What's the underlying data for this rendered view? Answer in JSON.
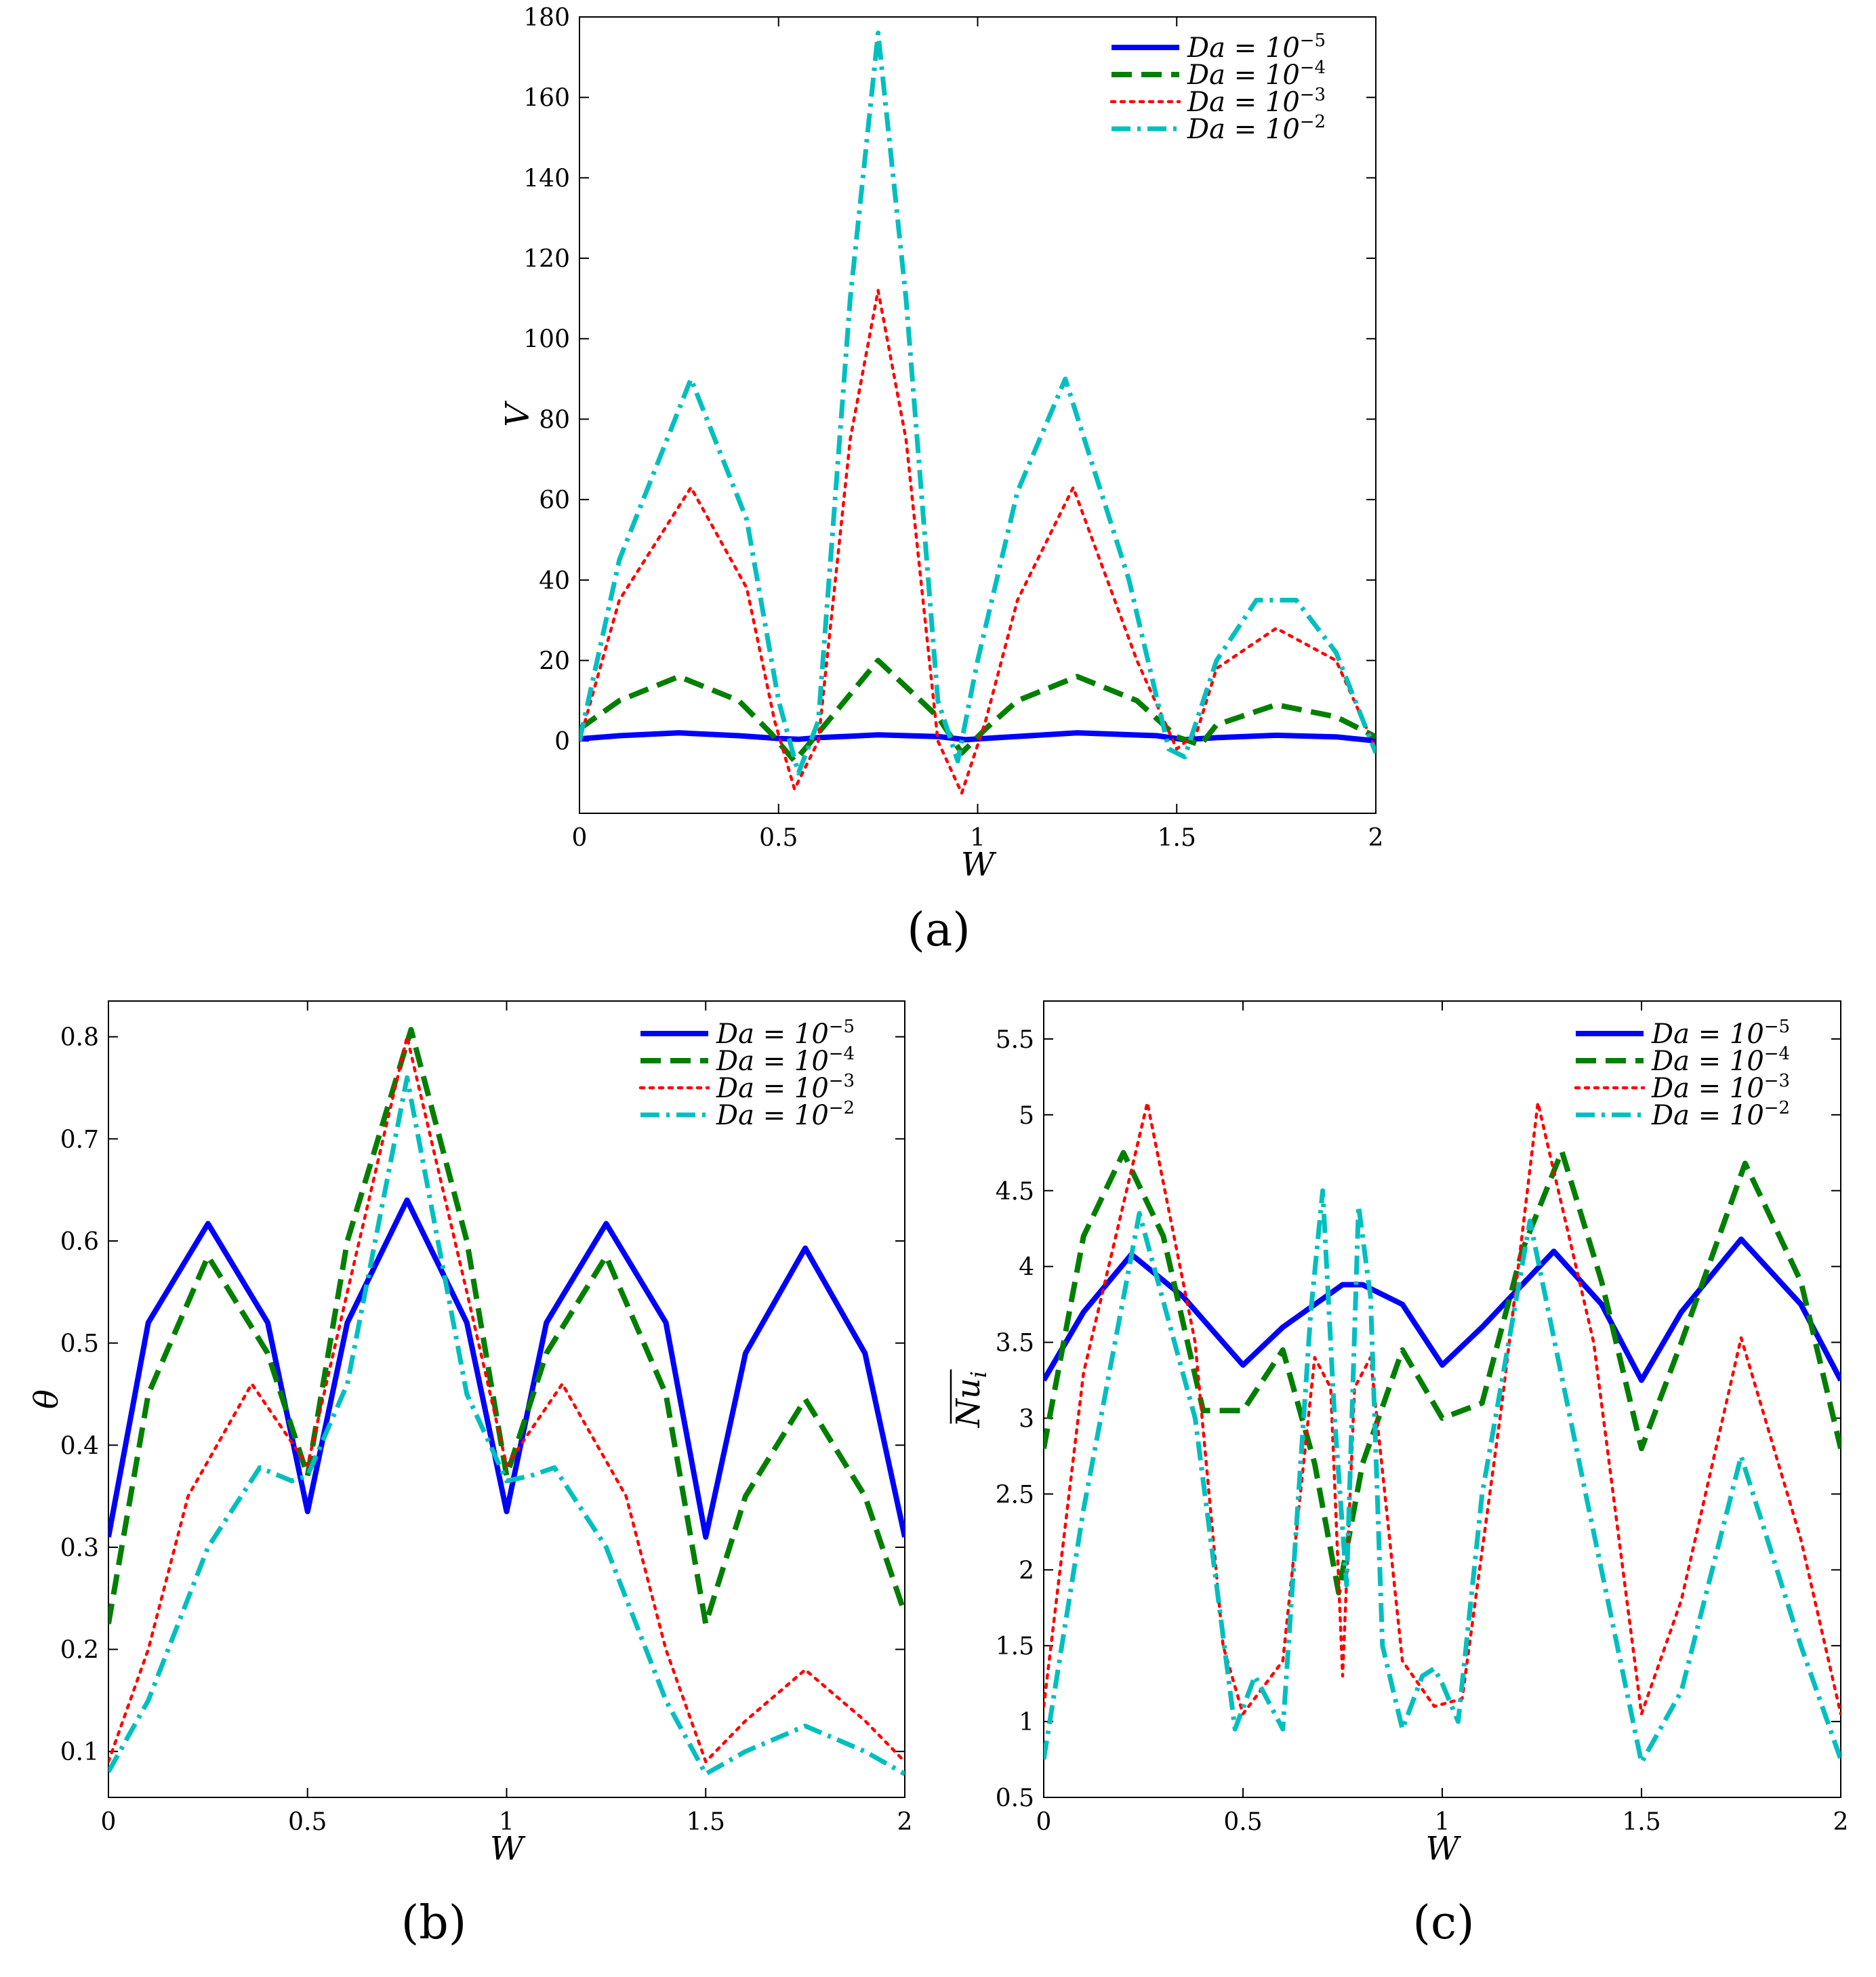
{
  "colors": {
    "Da1e-5": "#0000ff",
    "Da1e-4": "#007f00",
    "Da1e-3": "#ff0000",
    "Da1e-2": "#00bfbf"
  },
  "chart_data": [
    {
      "id": "a",
      "type": "line",
      "caption": "(a)",
      "xlabel": "W",
      "ylabel": "V",
      "xlim": [
        0,
        2
      ],
      "ylim": [
        -18,
        180
      ],
      "xticks": [
        0,
        0.5,
        1,
        1.5,
        2
      ],
      "xtick_labels": [
        "0",
        "0.5",
        "1",
        "1.5",
        "2"
      ],
      "yticks": [
        0,
        20,
        40,
        60,
        80,
        100,
        120,
        140,
        160,
        180
      ],
      "ytick_labels": [
        "0",
        "20",
        "40",
        "60",
        "80",
        "100",
        "120",
        "140",
        "160",
        "180"
      ],
      "legend_position": "top-right",
      "series": [
        {
          "name": "Da = 10^-5",
          "legend_base": "Da = 10",
          "legend_exp": "−5",
          "style": "solid",
          "color_key": "Da1e-5",
          "x": [
            0,
            0.1,
            0.25,
            0.4,
            0.5,
            0.55,
            0.6,
            0.75,
            0.9,
            0.97,
            1.05,
            1.25,
            1.45,
            1.52,
            1.6,
            1.75,
            1.9,
            2
          ],
          "y": [
            0.5,
            1.3,
            2,
            1.3,
            0.6,
            0.4,
            0.8,
            1.5,
            1.1,
            0.3,
            0.8,
            2,
            1.3,
            0.3,
            0.8,
            1.4,
            1,
            0
          ]
        },
        {
          "name": "Da = 10^-4",
          "legend_base": "Da = 10",
          "legend_exp": "−4",
          "style": "dashed",
          "color_key": "Da1e-4",
          "x": [
            0,
            0.1,
            0.25,
            0.4,
            0.48,
            0.54,
            0.6,
            0.75,
            0.9,
            0.96,
            1.02,
            1.1,
            1.25,
            1.4,
            1.5,
            1.56,
            1.6,
            1.75,
            1.9,
            2
          ],
          "y": [
            3,
            10,
            16,
            10,
            2,
            -5,
            2,
            20,
            6,
            -3,
            3,
            10,
            16,
            10,
            1,
            -1,
            4,
            9,
            6,
            1
          ]
        },
        {
          "name": "Da = 10^-3",
          "legend_base": "Da = 10",
          "legend_exp": "−3",
          "style": "dotted",
          "color_key": "Da1e-3",
          "x": [
            0,
            0.1,
            0.28,
            0.42,
            0.49,
            0.54,
            0.6,
            0.68,
            0.75,
            0.82,
            0.9,
            0.96,
            1.02,
            1.1,
            1.24,
            1.4,
            1.5,
            1.55,
            1.6,
            1.75,
            1.9,
            2
          ],
          "y": [
            0,
            35,
            63,
            38,
            5,
            -12,
            0,
            75,
            112,
            75,
            0,
            -13,
            5,
            35,
            63,
            20,
            -2,
            2,
            18,
            28,
            20,
            -2
          ]
        },
        {
          "name": "Da = 10^-2",
          "legend_base": "Da = 10",
          "legend_exp": "−2",
          "style": "dashdot",
          "color_key": "Da1e-2",
          "x": [
            0,
            0.1,
            0.28,
            0.42,
            0.5,
            0.55,
            0.6,
            0.68,
            0.75,
            0.82,
            0.9,
            0.95,
            1.0,
            1.1,
            1.22,
            1.38,
            1.48,
            1.52,
            1.6,
            1.7,
            1.8,
            1.9,
            2
          ],
          "y": [
            0,
            45,
            90,
            55,
            10,
            -8,
            5,
            110,
            176,
            110,
            10,
            -5,
            20,
            62,
            90,
            40,
            -2,
            -4,
            20,
            35,
            35,
            22,
            -3
          ]
        }
      ]
    },
    {
      "id": "b",
      "type": "line",
      "caption": "(b)",
      "xlabel": "W",
      "ylabel": "θ",
      "xlim": [
        0,
        2
      ],
      "ylim": [
        0.055,
        0.835
      ],
      "xticks": [
        0,
        0.5,
        1,
        1.5,
        2
      ],
      "xtick_labels": [
        "0",
        "0.5",
        "1",
        "1.5",
        "2"
      ],
      "yticks": [
        0.1,
        0.2,
        0.3,
        0.4,
        0.5,
        0.6,
        0.7,
        0.8
      ],
      "ytick_labels": [
        "0.1",
        "0.2",
        "0.3",
        "0.4",
        "0.5",
        "0.6",
        "0.7",
        "0.8"
      ],
      "legend_position": "top-right",
      "series": [
        {
          "name": "Da = 10^-5",
          "legend_base": "Da = 10",
          "legend_exp": "−5",
          "style": "solid",
          "color_key": "Da1e-5",
          "x": [
            0,
            0.1,
            0.25,
            0.4,
            0.5,
            0.6,
            0.75,
            0.9,
            1.0,
            1.1,
            1.25,
            1.4,
            1.5,
            1.6,
            1.75,
            1.9,
            2
          ],
          "y": [
            0.31,
            0.52,
            0.617,
            0.52,
            0.335,
            0.52,
            0.64,
            0.52,
            0.335,
            0.52,
            0.617,
            0.52,
            0.31,
            0.49,
            0.593,
            0.49,
            0.31
          ]
        },
        {
          "name": "Da = 10^-4",
          "legend_base": "Da = 10",
          "legend_exp": "−4",
          "style": "dashed",
          "color_key": "Da1e-4",
          "x": [
            0,
            0.1,
            0.25,
            0.4,
            0.5,
            0.6,
            0.76,
            0.9,
            1.0,
            1.1,
            1.25,
            1.4,
            1.5,
            1.6,
            1.75,
            1.9,
            2
          ],
          "y": [
            0.225,
            0.45,
            0.585,
            0.49,
            0.37,
            0.6,
            0.807,
            0.6,
            0.37,
            0.49,
            0.585,
            0.45,
            0.225,
            0.35,
            0.445,
            0.35,
            0.235
          ]
        },
        {
          "name": "Da = 10^-3",
          "legend_base": "Da = 10",
          "legend_exp": "−3",
          "style": "dotted",
          "color_key": "Da1e-3",
          "x": [
            0,
            0.1,
            0.2,
            0.36,
            0.5,
            0.6,
            0.75,
            0.9,
            1.0,
            1.14,
            1.3,
            1.4,
            1.5,
            1.6,
            1.75,
            1.9,
            2
          ],
          "y": [
            0.09,
            0.2,
            0.35,
            0.46,
            0.38,
            0.55,
            0.8,
            0.55,
            0.38,
            0.46,
            0.35,
            0.2,
            0.09,
            0.13,
            0.18,
            0.13,
            0.09
          ]
        },
        {
          "name": "Da = 10^-2",
          "legend_base": "Da = 10",
          "legend_exp": "−2",
          "style": "dashdot",
          "color_key": "Da1e-2",
          "x": [
            0,
            0.1,
            0.25,
            0.38,
            0.46,
            0.5,
            0.6,
            0.75,
            0.9,
            1.0,
            1.06,
            1.12,
            1.25,
            1.4,
            1.5,
            1.6,
            1.75,
            1.9,
            2
          ],
          "y": [
            0.08,
            0.15,
            0.3,
            0.378,
            0.365,
            0.37,
            0.46,
            0.76,
            0.45,
            0.365,
            0.37,
            0.378,
            0.3,
            0.15,
            0.078,
            0.1,
            0.125,
            0.1,
            0.078
          ]
        }
      ]
    },
    {
      "id": "c",
      "type": "line",
      "caption": "(c)",
      "xlabel": "W",
      "ylabel": "Nu_i (averaged)",
      "ylabel_main": "Nu",
      "ylabel_sub": "i",
      "xlim": [
        0,
        2
      ],
      "ylim": [
        0.5,
        5.75
      ],
      "xticks": [
        0,
        0.5,
        1,
        1.5,
        2
      ],
      "xtick_labels": [
        "0",
        "0.5",
        "1",
        "1.5",
        "2"
      ],
      "yticks": [
        0.5,
        1,
        1.5,
        2,
        2.5,
        3,
        3.5,
        4,
        4.5,
        5,
        5.5
      ],
      "ytick_labels": [
        "0.5",
        "1",
        "1.5",
        "2",
        "2.5",
        "3",
        "3.5",
        "4",
        "4.5",
        "5",
        "5.5"
      ],
      "legend_position": "top-right",
      "series": [
        {
          "name": "Da = 10^-5",
          "legend_base": "Da = 10",
          "legend_exp": "−5",
          "style": "solid",
          "color_key": "Da1e-5",
          "x": [
            0,
            0.1,
            0.22,
            0.35,
            0.5,
            0.6,
            0.75,
            0.8,
            0.9,
            1.0,
            1.1,
            1.28,
            1.4,
            1.5,
            1.6,
            1.75,
            1.9,
            2
          ],
          "y": [
            3.25,
            3.7,
            4.08,
            3.8,
            3.35,
            3.6,
            3.88,
            3.88,
            3.75,
            3.35,
            3.6,
            4.1,
            3.75,
            3.25,
            3.7,
            4.18,
            3.75,
            3.25
          ]
        },
        {
          "name": "Da = 10^-4",
          "legend_base": "Da = 10",
          "legend_exp": "−4",
          "style": "dashed",
          "color_key": "Da1e-4",
          "x": [
            0,
            0.1,
            0.2,
            0.3,
            0.4,
            0.5,
            0.6,
            0.68,
            0.74,
            0.8,
            0.9,
            1.0,
            1.1,
            1.2,
            1.3,
            1.4,
            1.5,
            1.6,
            1.76,
            1.9,
            2
          ],
          "y": [
            2.8,
            4.2,
            4.75,
            4.2,
            3.05,
            3.05,
            3.45,
            2.7,
            1.85,
            2.7,
            3.45,
            3.0,
            3.1,
            4.1,
            4.76,
            3.9,
            2.8,
            3.5,
            4.68,
            3.9,
            2.8
          ]
        },
        {
          "name": "Da = 10^-3",
          "legend_base": "Da = 10",
          "legend_exp": "−3",
          "style": "dotted",
          "color_key": "Da1e-3",
          "x": [
            0,
            0.1,
            0.26,
            0.38,
            0.45,
            0.5,
            0.6,
            0.68,
            0.72,
            0.75,
            0.78,
            0.82,
            0.9,
            0.98,
            1.05,
            1.15,
            1.24,
            1.38,
            1.5,
            1.6,
            1.75,
            1.9,
            2
          ],
          "y": [
            1.1,
            3.3,
            5.08,
            3.5,
            1.5,
            1.05,
            1.4,
            3.4,
            3.2,
            1.3,
            3.2,
            3.4,
            1.4,
            1.1,
            1.15,
            3.1,
            5.08,
            3.5,
            1.05,
            1.8,
            3.53,
            2.2,
            1.05
          ]
        },
        {
          "name": "Da = 10^-2",
          "legend_base": "Da = 10",
          "legend_exp": "−2",
          "style": "dashdot",
          "color_key": "Da1e-2",
          "x": [
            0,
            0.1,
            0.24,
            0.38,
            0.48,
            0.53,
            0.56,
            0.6,
            0.67,
            0.7,
            0.73,
            0.76,
            0.79,
            0.82,
            0.85,
            0.9,
            0.95,
            0.98,
            1.0,
            1.04,
            1.1,
            1.22,
            1.36,
            1.5,
            1.6,
            1.75,
            1.9,
            2
          ],
          "y": [
            0.75,
            2.4,
            4.35,
            3.0,
            0.95,
            1.3,
            1.15,
            0.95,
            3.7,
            4.5,
            3.0,
            1.9,
            4.4,
            3.8,
            1.5,
            0.95,
            1.3,
            1.35,
            1.25,
            1.0,
            2.5,
            4.3,
            2.5,
            0.73,
            1.2,
            2.75,
            1.5,
            0.75
          ]
        }
      ]
    }
  ]
}
